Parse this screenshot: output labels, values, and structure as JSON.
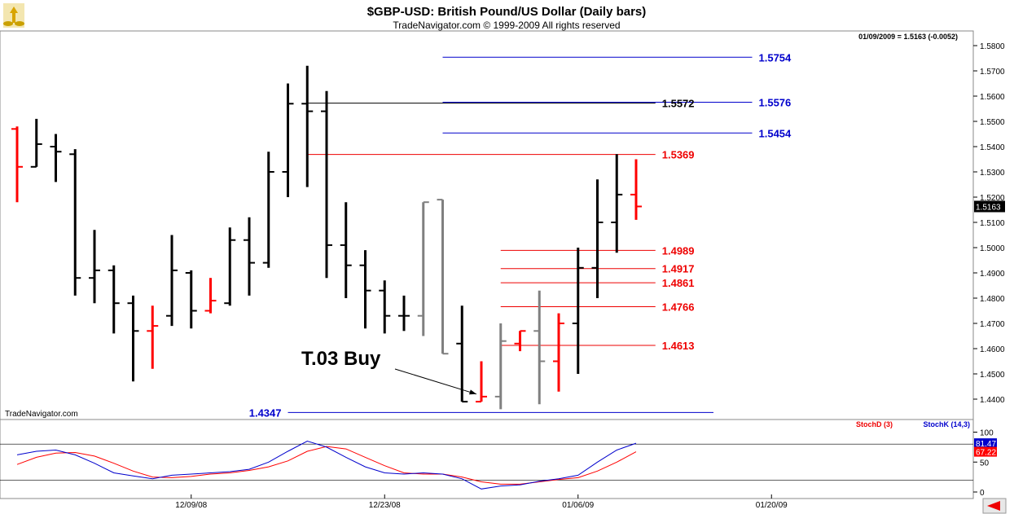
{
  "header": {
    "title": "$GBP-USD:  British Pound/US Dollar  (Daily bars)",
    "subtitle": "TradeNavigator.com © 1999-2009 All rights reserved",
    "readout": "01/09/2009 = 1.5163 (-0.0052)",
    "watermark": "TradeNavigator.com"
  },
  "colors": {
    "up": "#000000",
    "down": "#ff0000",
    "gray": "#808080",
    "blue_level": "#0000cc",
    "red_level": "#ee0000",
    "stochD": "#ff0000",
    "stochK": "#0000cc"
  },
  "chart_data": {
    "type": "ohlc",
    "y_ticks": [
      "1.5800",
      "1.5700",
      "1.5600",
      "1.5500",
      "1.5400",
      "1.5300",
      "1.5200",
      "1.5100",
      "1.5000",
      "1.4900",
      "1.4800",
      "1.4700",
      "1.4600",
      "1.4500",
      "1.4400"
    ],
    "ylim": [
      1.435,
      1.584
    ],
    "last_price_label": "1.5163",
    "last_price": 1.5163,
    "x_ticks": [
      {
        "label": "12/09/08",
        "bar": 9
      },
      {
        "label": "12/23/08",
        "bar": 19
      },
      {
        "label": "01/06/09",
        "bar": 29
      },
      {
        "label": "01/20/09",
        "bar": 39
      }
    ],
    "bars": [
      {
        "o": 1.547,
        "h": 1.548,
        "l": 1.518,
        "c": 1.532,
        "col": "down"
      },
      {
        "o": 1.532,
        "h": 1.551,
        "l": 1.532,
        "c": 1.541,
        "col": "up"
      },
      {
        "o": 1.54,
        "h": 1.545,
        "l": 1.526,
        "c": 1.538,
        "col": "up"
      },
      {
        "o": 1.537,
        "h": 1.539,
        "l": 1.481,
        "c": 1.488,
        "col": "up"
      },
      {
        "o": 1.488,
        "h": 1.507,
        "l": 1.478,
        "c": 1.491,
        "col": "up"
      },
      {
        "o": 1.491,
        "h": 1.493,
        "l": 1.466,
        "c": 1.478,
        "col": "up"
      },
      {
        "o": 1.478,
        "h": 1.481,
        "l": 1.447,
        "c": 1.467,
        "col": "up"
      },
      {
        "o": 1.467,
        "h": 1.477,
        "l": 1.452,
        "c": 1.469,
        "col": "down"
      },
      {
        "o": 1.473,
        "h": 1.505,
        "l": 1.469,
        "c": 1.491,
        "col": "up"
      },
      {
        "o": 1.49,
        "h": 1.491,
        "l": 1.468,
        "c": 1.475,
        "col": "up"
      },
      {
        "o": 1.475,
        "h": 1.488,
        "l": 1.474,
        "c": 1.479,
        "col": "down"
      },
      {
        "o": 1.478,
        "h": 1.508,
        "l": 1.477,
        "c": 1.503,
        "col": "up"
      },
      {
        "o": 1.503,
        "h": 1.512,
        "l": 1.481,
        "c": 1.494,
        "col": "up"
      },
      {
        "o": 1.494,
        "h": 1.538,
        "l": 1.492,
        "c": 1.53,
        "col": "up"
      },
      {
        "o": 1.53,
        "h": 1.565,
        "l": 1.52,
        "c": 1.557,
        "col": "up"
      },
      {
        "o": 1.557,
        "h": 1.572,
        "l": 1.524,
        "c": 1.554,
        "col": "up"
      },
      {
        "o": 1.554,
        "h": 1.562,
        "l": 1.488,
        "c": 1.501,
        "col": "up"
      },
      {
        "o": 1.501,
        "h": 1.518,
        "l": 1.48,
        "c": 1.493,
        "col": "up"
      },
      {
        "o": 1.493,
        "h": 1.499,
        "l": 1.468,
        "c": 1.483,
        "col": "up"
      },
      {
        "o": 1.483,
        "h": 1.487,
        "l": 1.466,
        "c": 1.473,
        "col": "up"
      },
      {
        "o": 1.473,
        "h": 1.481,
        "l": 1.467,
        "c": 1.473,
        "col": "up"
      },
      {
        "o": 1.473,
        "h": 1.518,
        "l": 1.465,
        "c": 1.518,
        "col": "gray"
      },
      {
        "o": 1.519,
        "h": 1.519,
        "l": 1.458,
        "c": 1.458,
        "col": "gray"
      },
      {
        "o": 1.462,
        "h": 1.477,
        "l": 1.439,
        "c": 1.439,
        "col": "up"
      },
      {
        "o": 1.439,
        "h": 1.455,
        "l": 1.439,
        "c": 1.441,
        "col": "down"
      },
      {
        "o": 1.441,
        "h": 1.47,
        "l": 1.436,
        "c": 1.463,
        "col": "gray"
      },
      {
        "o": 1.462,
        "h": 1.467,
        "l": 1.459,
        "c": 1.467,
        "col": "down"
      },
      {
        "o": 1.467,
        "h": 1.483,
        "l": 1.438,
        "c": 1.455,
        "col": "gray"
      },
      {
        "o": 1.455,
        "h": 1.474,
        "l": 1.443,
        "c": 1.47,
        "col": "down"
      },
      {
        "o": 1.47,
        "h": 1.5,
        "l": 1.45,
        "c": 1.492,
        "col": "up"
      },
      {
        "o": 1.492,
        "h": 1.527,
        "l": 1.48,
        "c": 1.51,
        "col": "up"
      },
      {
        "o": 1.51,
        "h": 1.537,
        "l": 1.498,
        "c": 1.521,
        "col": "up"
      },
      {
        "o": 1.521,
        "h": 1.535,
        "l": 1.511,
        "c": 1.5163,
        "col": "down"
      }
    ],
    "levels": [
      {
        "price": 1.5754,
        "label": "1.5754",
        "color": "blue",
        "from_bar": 22,
        "to_bar": 38
      },
      {
        "price": 1.5576,
        "label": "1.5576",
        "color": "blue",
        "from_bar": 22,
        "to_bar": 38
      },
      {
        "price": 1.5572,
        "label": "1.5572",
        "color": "black",
        "from_bar": 15,
        "to_bar": 33
      },
      {
        "price": 1.5454,
        "label": "1.5454",
        "color": "blue",
        "from_bar": 22,
        "to_bar": 38
      },
      {
        "price": 1.5369,
        "label": "1.5369",
        "color": "red",
        "from_bar": 15,
        "to_bar": 33
      },
      {
        "price": 1.4989,
        "label": "1.4989",
        "color": "red",
        "from_bar": 25,
        "to_bar": 33
      },
      {
        "price": 1.4917,
        "label": "1.4917",
        "color": "red",
        "from_bar": 25,
        "to_bar": 33
      },
      {
        "price": 1.4861,
        "label": "1.4861",
        "color": "red",
        "from_bar": 25,
        "to_bar": 33
      },
      {
        "price": 1.4766,
        "label": "1.4766",
        "color": "red",
        "from_bar": 25,
        "to_bar": 33
      },
      {
        "price": 1.4613,
        "label": "1.4613",
        "color": "red",
        "from_bar": 25,
        "to_bar": 33
      },
      {
        "price": 1.4347,
        "label": "1.4347",
        "color": "blue",
        "from_bar": 14,
        "to_bar": 36,
        "label_left": true
      }
    ],
    "annotation": {
      "text": "T.03 Buy",
      "arrow_to_bar": 24,
      "arrow_to_price": 1.442
    },
    "stochastic": {
      "legend": [
        "StochD (3)",
        "StochK (14,3)"
      ],
      "y_ticks": [
        "100",
        "50",
        "0"
      ],
      "ylim": [
        0,
        100
      ],
      "value_labels": [
        "81.47",
        "67.22"
      ],
      "k": [
        62,
        68,
        70,
        62,
        48,
        32,
        27,
        22,
        28,
        30,
        32,
        34,
        38,
        50,
        68,
        85,
        75,
        58,
        42,
        32,
        30,
        32,
        30,
        22,
        5,
        10,
        12,
        18,
        22,
        28,
        50,
        70,
        81.47
      ],
      "d": [
        46,
        58,
        65,
        66,
        60,
        48,
        35,
        25,
        24,
        26,
        30,
        32,
        36,
        42,
        52,
        68,
        76,
        72,
        58,
        44,
        32,
        30,
        30,
        25,
        17,
        13,
        13,
        17,
        21,
        24,
        35,
        50,
        67.22
      ],
      "hlines": [
        80,
        20
      ]
    }
  }
}
